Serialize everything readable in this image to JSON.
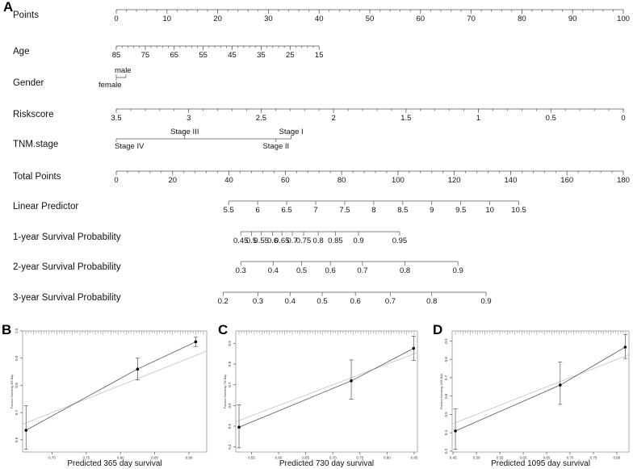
{
  "panel_letters": {
    "A": "A",
    "B": "B",
    "C": "C",
    "D": "D"
  },
  "chart_data": [
    {
      "type": "nomogram",
      "rows": [
        {
          "label": "Points",
          "kind": "scale",
          "min": 0,
          "max": 100,
          "labels": [
            "0",
            "10",
            "20",
            "30",
            "40",
            "50",
            "60",
            "70",
            "80",
            "90",
            "100"
          ],
          "label_values": [
            0,
            10,
            20,
            30,
            40,
            50,
            60,
            70,
            80,
            90,
            100
          ],
          "minor_step": 2
        },
        {
          "label": "Age",
          "kind": "scale",
          "labels": [
            "85",
            "75",
            "65",
            "55",
            "45",
            "35",
            "25",
            "15"
          ],
          "label_points": [
            0,
            5.71,
            11.43,
            17.14,
            22.86,
            28.57,
            34.29,
            40
          ],
          "minor_count": 35
        },
        {
          "label": "Gender",
          "kind": "categorical",
          "categories": [
            {
              "name": "male",
              "points": 0,
              "side": "above"
            },
            {
              "name": "female",
              "points": 0,
              "side": "below"
            }
          ]
        },
        {
          "label": "Riskscore",
          "kind": "scale",
          "labels": [
            "3.5",
            "3",
            "2.5",
            "2",
            "1.5",
            "1",
            "0.5",
            "0"
          ],
          "label_points": [
            0,
            14.29,
            28.57,
            42.86,
            57.14,
            71.43,
            85.71,
            100
          ],
          "minor_count": 35
        },
        {
          "label": "TNM.stage",
          "kind": "categorical",
          "categories": [
            {
              "name": "Stage III",
              "points": 13.5,
              "side": "above"
            },
            {
              "name": "Stage I",
              "points": 34.5,
              "side": "above"
            },
            {
              "name": "Stage IV",
              "points": 0,
              "side": "below"
            },
            {
              "name": "Stage II",
              "points": 31.5,
              "side": "below"
            }
          ]
        },
        {
          "label": "Total Points",
          "kind": "scale",
          "labels": [
            "0",
            "20",
            "40",
            "60",
            "80",
            "100",
            "120",
            "140",
            "160",
            "180"
          ],
          "label_values": [
            0,
            20,
            40,
            60,
            80,
            100,
            120,
            140,
            160,
            180
          ],
          "min": 0,
          "max": 180,
          "minor_step": 4
        },
        {
          "label": "Linear Predictor",
          "kind": "scale",
          "labels": [
            "5.5",
            "6",
            "6.5",
            "7",
            "7.5",
            "8",
            "8.5",
            "9",
            "9.5",
            "10",
            "10.5"
          ],
          "label_total_points": [
            39.9,
            50.2,
            60.5,
            70.8,
            81.1,
            91.4,
            101.7,
            112.0,
            122.3,
            132.6,
            142.9
          ]
        },
        {
          "label": "1-year Survival Probability",
          "kind": "scale",
          "labels": [
            "0.45",
            "0.5",
            "0.55",
            "0.6",
            "0.65",
            "0.7",
            "0.75",
            "0.8",
            "0.85",
            "0.9",
            "0.95"
          ],
          "label_total_points": [
            44.2,
            48.0,
            51.5,
            55.5,
            58.8,
            62.5,
            66.5,
            71.7,
            77.8,
            86.0,
            100.6
          ]
        },
        {
          "label": "2-year Survival Probability",
          "kind": "scale",
          "labels": [
            "0.3",
            "0.4",
            "0.5",
            "0.6",
            "0.7",
            "0.8",
            "0.9"
          ],
          "label_total_points": [
            44.2,
            55.7,
            65.8,
            76.0,
            87.4,
            102.5,
            121.3
          ]
        },
        {
          "label": "3-year Survival Probability",
          "kind": "scale",
          "labels": [
            "0.2",
            "0.3",
            "0.4",
            "0.5",
            "0.6",
            "0.7",
            "0.8",
            "0.9"
          ],
          "label_total_points": [
            37.9,
            50.3,
            61.7,
            73.1,
            84.9,
            97.3,
            112.0,
            131.3
          ]
        }
      ]
    },
    {
      "type": "scatter",
      "panel": "B",
      "xlabel": "Predicted 365 day survival",
      "ylabel": "Fraction Surviving 365 Day",
      "xlim": [
        0.657,
        0.926
      ],
      "ylim": [
        0.555,
        1.0
      ],
      "xticks": [
        0.7,
        0.75,
        0.8,
        0.85,
        0.9
      ],
      "xtick_labels": [
        "0.70",
        "0.75",
        "0.80",
        "0.85",
        "0.90"
      ],
      "yticks": [
        0.6,
        0.7,
        0.8,
        0.9,
        1.0
      ],
      "ytick_labels": [
        "0.6",
        "0.7",
        "0.8",
        "0.9",
        "1.0"
      ],
      "points": [
        {
          "x": 0.662,
          "y": 0.635,
          "lo": 0.565,
          "hi": 0.725
        },
        {
          "x": 0.825,
          "y": 0.86,
          "lo": 0.82,
          "hi": 0.9
        },
        {
          "x": 0.91,
          "y": 0.96,
          "lo": 0.943,
          "hi": 0.977
        }
      ]
    },
    {
      "type": "scatter",
      "panel": "C",
      "xlabel": "Predicted 730 day survival",
      "ylabel": "Fraction Surviving 730 Day",
      "xlim": [
        0.521,
        0.856
      ],
      "ylim": [
        0.375,
        0.96
      ],
      "xticks": [
        0.55,
        0.6,
        0.65,
        0.7,
        0.75,
        0.8,
        0.85
      ],
      "xtick_labels": [
        "0.55",
        "0.60",
        "0.65",
        "0.70",
        "0.75",
        "0.80",
        "0.85"
      ],
      "yticks": [
        0.4,
        0.5,
        0.6,
        0.7,
        0.8,
        0.9
      ],
      "ytick_labels": [
        "0.4",
        "0.5",
        "0.6",
        "0.7",
        "0.8",
        "0.9"
      ],
      "points": [
        {
          "x": 0.527,
          "y": 0.495,
          "lo": 0.395,
          "hi": 0.603
        },
        {
          "x": 0.734,
          "y": 0.719,
          "lo": 0.63,
          "hi": 0.82
        },
        {
          "x": 0.849,
          "y": 0.876,
          "lo": 0.817,
          "hi": 0.935
        }
      ]
    },
    {
      "type": "scatter",
      "panel": "D",
      "xlabel": "Predicted 1095 day survival",
      "ylabel": "Fraction Surviving 1095 Day",
      "xlim": [
        0.448,
        0.826
      ],
      "ylim": [
        0.295,
        0.955
      ],
      "xticks": [
        0.45,
        0.5,
        0.55,
        0.6,
        0.65,
        0.7,
        0.75,
        0.8
      ],
      "xtick_labels": [
        "0.45",
        "0.50",
        "0.55",
        "0.60",
        "0.65",
        "0.70",
        "0.75",
        "0.80"
      ],
      "yticks": [
        0.3,
        0.4,
        0.5,
        0.6,
        0.7,
        0.8,
        0.9
      ],
      "ytick_labels": [
        "0.3",
        "0.4",
        "0.5",
        "0.6",
        "0.7",
        "0.8",
        "0.9"
      ],
      "points": [
        {
          "x": 0.455,
          "y": 0.41,
          "lo": 0.31,
          "hi": 0.53
        },
        {
          "x": 0.679,
          "y": 0.66,
          "lo": 0.555,
          "hi": 0.785
        },
        {
          "x": 0.818,
          "y": 0.867,
          "lo": 0.805,
          "hi": 0.935
        }
      ]
    }
  ]
}
